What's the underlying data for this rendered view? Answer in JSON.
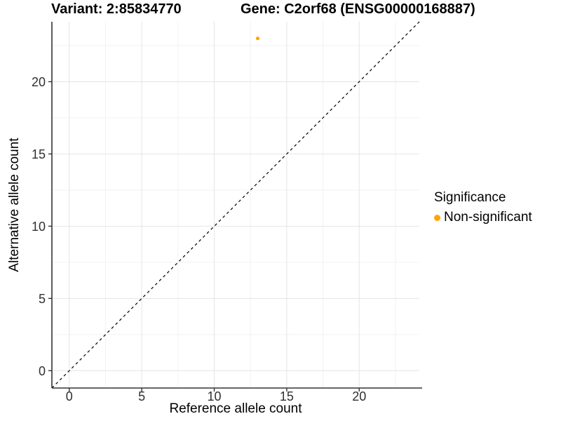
{
  "titles": {
    "variant": "Variant: 2:85834770",
    "gene": "Gene: C2orf68 (ENSG00000168887)"
  },
  "chart_data": {
    "type": "scatter",
    "xlabel": "Reference allele count",
    "ylabel": "Alternative allele count",
    "xlim": [
      -1.2,
      24.15
    ],
    "ylim": [
      -1.2,
      24.15
    ],
    "x_ticks": [
      0,
      5,
      10,
      15,
      20
    ],
    "y_ticks": [
      0,
      5,
      10,
      15,
      20
    ],
    "minor_gridlines": [
      2.5,
      7.5,
      12.5,
      17.5,
      22.5
    ],
    "grid": true,
    "legend_position": "right",
    "series": [
      {
        "name": "Non-significant",
        "color": "#FFA500",
        "points": [
          {
            "x": 13,
            "y": 23
          }
        ]
      }
    ],
    "reference_line": {
      "type": "identity",
      "style": "dashed",
      "color": "#000000"
    }
  },
  "legend": {
    "title": "Significance",
    "items": [
      {
        "label": "Non-significant",
        "color": "#FFA500"
      }
    ]
  },
  "colors": {
    "point": "#FFA500",
    "major_grid": "#E4E4E4",
    "minor_grid": "#F2F2F2",
    "axis_line": "#333333",
    "tick_text": "#303030"
  }
}
